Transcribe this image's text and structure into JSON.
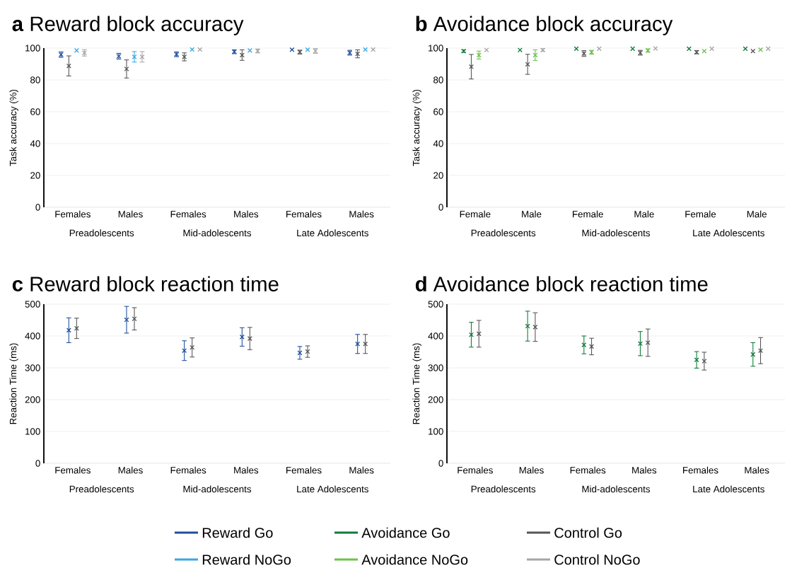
{
  "chart_data": [
    {
      "type": "scatter",
      "title": "**a** Reward block accuracy",
      "ylabel": "Task accuracy (%)",
      "marker": "cross",
      "grid": "y",
      "legend": "bottom",
      "categories": [
        "Females",
        "Males",
        "Females",
        "Males",
        "Females",
        "Males"
      ],
      "ylim": [
        0,
        100
      ],
      "yticks": [
        0,
        20,
        40,
        60,
        80,
        100
      ],
      "annotations": [
        "Preadolescents",
        "Mid-adolescents",
        "Late Adolescents"
      ],
      "series": [
        {
          "name": "Reward Go",
          "color": "#1f4e9c",
          "values": [
            95.9,
            94.9,
            96.1,
            97.7,
            99.0,
            97.1
          ],
          "errors": [
            1.7,
            1.8,
            1.5,
            1.2,
            null,
            1.5
          ]
        },
        {
          "name": "Control Go",
          "color": "#555555",
          "values": [
            88.8,
            86.9,
            94.5,
            95.6,
            97.5,
            96.4
          ],
          "errors": [
            6.3,
            5.7,
            2.5,
            3.3,
            1.2,
            2.5
          ]
        },
        {
          "name": "Reward NoGo",
          "color": "#3aa8e0",
          "values": [
            98.5,
            94.5,
            99.1,
            98.5,
            99.0,
            99.1
          ],
          "errors": [
            null,
            3.3,
            null,
            null,
            null,
            null
          ]
        },
        {
          "name": "Control NoGo",
          "color": "#a6a6a6",
          "values": [
            97.0,
            94.5,
            99.1,
            98.2,
            98.2,
            99.1
          ],
          "errors": [
            2.0,
            3.3,
            null,
            1.2,
            1.5,
            null
          ]
        }
      ]
    },
    {
      "type": "scatter",
      "title": "**b** Avoidance block accuracy",
      "ylabel": "Task accuracy (%)",
      "marker": "cross",
      "grid": "y",
      "legend": "bottom",
      "categories": [
        "Female",
        "Male",
        "Female",
        "Male",
        "Female",
        "Male"
      ],
      "ylim": [
        0,
        100
      ],
      "yticks": [
        0,
        20,
        40,
        60,
        80,
        100
      ],
      "annotations": [
        "Preadolescents",
        "Mid-adolescents",
        "Late Adolescents"
      ],
      "series": [
        {
          "name": "Avoidance Go",
          "color": "#117a3a",
          "values": [
            98.1,
            98.8,
            99.6,
            99.6,
            99.6,
            99.6
          ],
          "errors": [
            0.8,
            null,
            null,
            null,
            null,
            null
          ]
        },
        {
          "color": "#555555",
          "values": [
            88.3,
            89.8,
            96.6,
            97.1,
            97.4,
            98.1
          ],
          "errors": [
            7.7,
            6.3,
            1.8,
            1.5,
            1.0,
            null
          ]
        },
        {
          "name": "Avoidance NoGo",
          "color": "#6cc24a",
          "values": [
            95.6,
            95.6,
            97.4,
            98.5,
            98.1,
            99.0
          ],
          "errors": [
            2.5,
            3.3,
            1.2,
            1.0,
            null,
            null
          ]
        },
        {
          "color": "#a6a6a6",
          "values": [
            98.8,
            98.8,
            99.6,
            99.8,
            99.6,
            99.6
          ],
          "errors": [
            null,
            0.8,
            null,
            null,
            null,
            null
          ]
        }
      ]
    },
    {
      "type": "scatter",
      "title": "**c** Reward block reaction time",
      "ylabel": "Reaction Time (ms)",
      "marker": "cross",
      "grid": "y",
      "categories": [
        "Females",
        "Males",
        "Females",
        "Males",
        "Females",
        "Males"
      ],
      "ylim": [
        0,
        500
      ],
      "yticks": [
        0,
        100,
        200,
        300,
        400,
        500
      ],
      "annotations": [
        "Preadolescents",
        "Mid-adolescents",
        "Late Adolescents"
      ],
      "series": [
        {
          "color": "#1f4e9c",
          "values": [
            418,
            451,
            354,
            397,
            347,
            375
          ],
          "errors": [
            39,
            42,
            31,
            29,
            20,
            30
          ]
        },
        {
          "color": "#555555",
          "values": [
            424,
            454,
            364,
            392,
            351,
            375
          ],
          "errors": [
            32,
            35,
            30,
            35,
            18,
            30
          ]
        }
      ]
    },
    {
      "type": "scatter",
      "title": "**d** Avoidance block reaction time",
      "ylabel": "Reaction Time (ms)",
      "marker": "cross",
      "grid": "y",
      "categories": [
        "Females",
        "Males",
        "Females",
        "Males",
        "Females",
        "Males"
      ],
      "ylim": [
        0,
        500
      ],
      "yticks": [
        0,
        100,
        200,
        300,
        400,
        500
      ],
      "annotations": [
        "Preadolescents",
        "Mid-adolescents",
        "Late Adolescents"
      ],
      "series": [
        {
          "color": "#117a3a",
          "values": [
            404,
            431,
            372,
            376,
            325,
            342
          ],
          "errors": [
            39,
            47,
            28,
            38,
            26,
            37
          ]
        },
        {
          "color": "#555555",
          "values": [
            407,
            428,
            367,
            379,
            321,
            354
          ],
          "errors": [
            42,
            45,
            26,
            43,
            28,
            41
          ]
        }
      ]
    }
  ]
}
